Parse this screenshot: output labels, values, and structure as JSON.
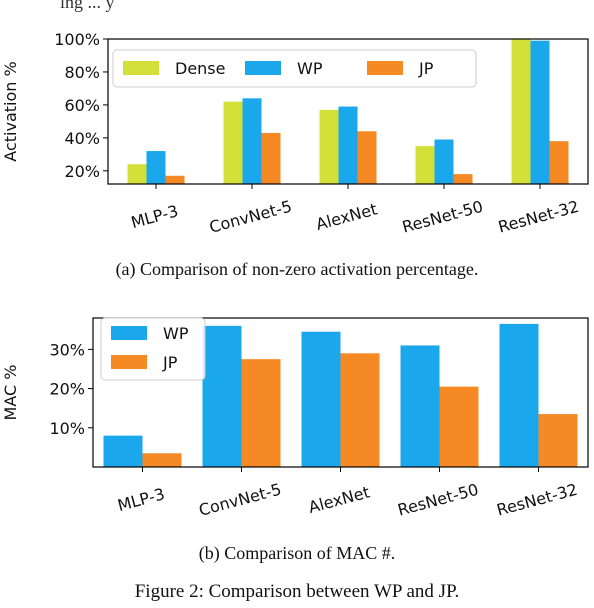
{
  "colors": {
    "dense": "#d4e03a",
    "wp": "#1aa7ec",
    "jp": "#f58a25",
    "axis": "#000000",
    "text": "#111111"
  },
  "header": {
    "partial_line": "ing ... y"
  },
  "captions": {
    "a": "(a)  Comparison of non-zero activation percentage.",
    "b": "(b)  Comparison of MAC #.",
    "figure": "Figure 2: Comparison between WP and JP."
  },
  "chart_data": [
    {
      "type": "bar",
      "categories": [
        "MLP-3",
        "ConvNet-5",
        "AlexNet",
        "ResNet-50",
        "ResNet-32"
      ],
      "series": [
        {
          "name": "Dense",
          "color": "#d4e03a",
          "values": [
            24,
            62,
            57,
            35,
            100
          ]
        },
        {
          "name": "WP",
          "color": "#1aa7ec",
          "values": [
            32,
            64,
            59,
            39,
            99
          ]
        },
        {
          "name": "JP",
          "color": "#f58a25",
          "values": [
            17,
            43,
            44,
            18,
            38
          ]
        }
      ],
      "ylabel": "Activation %",
      "ylim": [
        12,
        100
      ],
      "yticks": [
        20,
        40,
        60,
        80,
        100
      ],
      "ytick_labels": [
        "20%",
        "40%",
        "60%",
        "80%",
        "100%"
      ],
      "legend": "top, single row",
      "grid": false
    },
    {
      "type": "bar",
      "categories": [
        "MLP-3",
        "ConvNet-5",
        "AlexNet",
        "ResNet-50",
        "ResNet-32"
      ],
      "series": [
        {
          "name": "WP",
          "color": "#1aa7ec",
          "values": [
            8,
            36,
            34.5,
            31,
            36.5
          ]
        },
        {
          "name": "JP",
          "color": "#f58a25",
          "values": [
            3.5,
            27.5,
            29,
            20.5,
            13.5
          ]
        }
      ],
      "ylabel": "MAC %",
      "ylim": [
        0,
        38
      ],
      "yticks": [
        10,
        20,
        30
      ],
      "ytick_labels": [
        "10%",
        "20%",
        "30%"
      ],
      "legend": "top-left",
      "grid": false
    }
  ]
}
